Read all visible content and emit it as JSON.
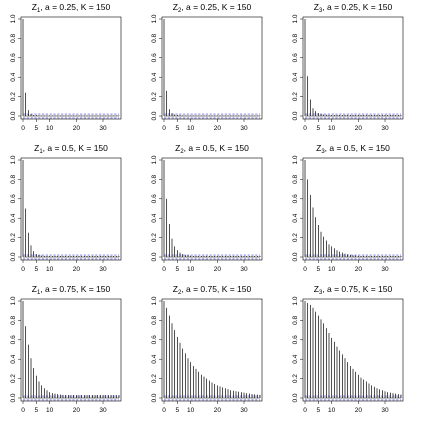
{
  "chart_data": [
    {
      "type": "bar",
      "title": "Z1, a = 0.25, K = 150",
      "title_main": "Z",
      "title_sub": "1",
      "title_rest": ", a = 0.25, K = 150",
      "ylim": [
        0,
        1
      ],
      "xlim": [
        0,
        36
      ],
      "yticks": [
        "0.0",
        "0.2",
        "0.4",
        "0.6",
        "0.8",
        "1.0"
      ],
      "xticks": [
        "0",
        "5",
        "10",
        "20",
        "30"
      ],
      "ci": 0.02,
      "lags": [
        0,
        1,
        2,
        3,
        4,
        5,
        6,
        7,
        8,
        9,
        10,
        11,
        12,
        13,
        14,
        15,
        16,
        17,
        18,
        19,
        20,
        21,
        22,
        23,
        24,
        25,
        26,
        27,
        28,
        29,
        30,
        31,
        32,
        33,
        34,
        35,
        36
      ],
      "values": [
        1.0,
        0.24,
        0.06,
        0.02,
        0.01,
        0.01,
        0.005,
        0.005,
        0.005,
        0.005,
        0.005,
        0.005,
        0.005,
        0.005,
        0.005,
        0.005,
        0.005,
        0.005,
        0.005,
        0.005,
        0.005,
        0.005,
        0.005,
        0.005,
        0.005,
        0.005,
        0.005,
        0.005,
        0.005,
        0.005,
        0.005,
        0.005,
        0.005,
        0.005,
        0.005,
        0.005,
        0.005
      ]
    },
    {
      "type": "bar",
      "title": "Z2, a = 0.25, K = 150",
      "title_main": "Z",
      "title_sub": "2",
      "title_rest": ", a = 0.25, K = 150",
      "ylim": [
        0,
        1
      ],
      "xlim": [
        0,
        36
      ],
      "yticks": [
        "0.0",
        "0.2",
        "0.4",
        "0.6",
        "0.8",
        "1.0"
      ],
      "xticks": [
        "0",
        "5",
        "10",
        "20",
        "30"
      ],
      "ci": 0.02,
      "lags": [
        0,
        1,
        2,
        3,
        4,
        5,
        6,
        7,
        8,
        9,
        10,
        11,
        12,
        13,
        14,
        15,
        16,
        17,
        18,
        19,
        20,
        21,
        22,
        23,
        24,
        25,
        26,
        27,
        28,
        29,
        30,
        31,
        32,
        33,
        34,
        35,
        36
      ],
      "values": [
        1.0,
        0.26,
        0.07,
        0.03,
        0.015,
        0.01,
        0.008,
        0.006,
        0.005,
        0.005,
        0.005,
        0.005,
        0.005,
        0.005,
        0.005,
        0.005,
        0.005,
        0.005,
        0.005,
        0.005,
        0.005,
        0.005,
        0.005,
        0.005,
        0.005,
        0.005,
        0.005,
        0.005,
        0.005,
        0.005,
        0.005,
        0.005,
        0.005,
        0.005,
        0.005,
        0.005,
        0.005
      ]
    },
    {
      "type": "bar",
      "title": "Z3, a = 0.25, K = 150",
      "title_main": "Z",
      "title_sub": "3",
      "title_rest": ", a = 0.25, K = 150",
      "ylim": [
        0,
        1
      ],
      "xlim": [
        0,
        36
      ],
      "yticks": [
        "0.0",
        "0.2",
        "0.4",
        "0.6",
        "0.8",
        "1.0"
      ],
      "xticks": [
        "0",
        "5",
        "10",
        "20",
        "30"
      ],
      "ci": 0.02,
      "lags": [
        0,
        1,
        2,
        3,
        4,
        5,
        6,
        7,
        8,
        9,
        10,
        11,
        12,
        13,
        14,
        15,
        16,
        17,
        18,
        19,
        20,
        21,
        22,
        23,
        24,
        25,
        26,
        27,
        28,
        29,
        30,
        31,
        32,
        33,
        34,
        35,
        36
      ],
      "values": [
        1.0,
        0.41,
        0.17,
        0.08,
        0.05,
        0.03,
        0.02,
        0.015,
        0.012,
        0.01,
        0.01,
        0.01,
        0.01,
        0.01,
        0.01,
        0.01,
        0.01,
        0.01,
        0.01,
        0.01,
        0.01,
        0.01,
        0.01,
        0.01,
        0.01,
        0.01,
        0.01,
        0.01,
        0.01,
        0.01,
        0.01,
        0.01,
        0.01,
        0.01,
        0.01,
        0.01,
        0.01
      ]
    },
    {
      "type": "bar",
      "title": "Z1, a = 0.5, K = 150",
      "title_main": "Z",
      "title_sub": "1",
      "title_rest": ", a = 0.5, K = 150",
      "ylim": [
        0,
        1
      ],
      "xlim": [
        0,
        36
      ],
      "yticks": [
        "0.0",
        "0.2",
        "0.4",
        "0.6",
        "0.8",
        "1.0"
      ],
      "xticks": [
        "0",
        "5",
        "10",
        "20",
        "30"
      ],
      "ci": 0.02,
      "lags": [
        0,
        1,
        2,
        3,
        4,
        5,
        6,
        7,
        8,
        9,
        10,
        11,
        12,
        13,
        14,
        15,
        16,
        17,
        18,
        19,
        20,
        21,
        22,
        23,
        24,
        25,
        26,
        27,
        28,
        29,
        30,
        31,
        32,
        33,
        34,
        35,
        36
      ],
      "values": [
        1.0,
        0.5,
        0.25,
        0.12,
        0.06,
        0.03,
        0.02,
        0.015,
        0.01,
        0.01,
        0.01,
        0.01,
        0.01,
        0.01,
        0.01,
        0.01,
        0.01,
        0.01,
        0.01,
        0.01,
        0.01,
        0.01,
        0.01,
        0.01,
        0.01,
        0.01,
        0.01,
        0.01,
        0.01,
        0.01,
        0.01,
        0.01,
        0.01,
        0.01,
        0.01,
        0.01,
        0.01
      ]
    },
    {
      "type": "bar",
      "title": "Z2, a = 0.5, K = 150",
      "title_main": "Z",
      "title_sub": "2",
      "title_rest": ", a = 0.5, K = 150",
      "ylim": [
        0,
        1
      ],
      "xlim": [
        0,
        36
      ],
      "yticks": [
        "0.0",
        "0.2",
        "0.4",
        "0.6",
        "0.8",
        "1.0"
      ],
      "xticks": [
        "0",
        "5",
        "10",
        "20",
        "30"
      ],
      "ci": 0.02,
      "lags": [
        0,
        1,
        2,
        3,
        4,
        5,
        6,
        7,
        8,
        9,
        10,
        11,
        12,
        13,
        14,
        15,
        16,
        17,
        18,
        19,
        20,
        21,
        22,
        23,
        24,
        25,
        26,
        27,
        28,
        29,
        30,
        31,
        32,
        33,
        34,
        35,
        36
      ],
      "values": [
        1.0,
        0.6,
        0.34,
        0.19,
        0.11,
        0.07,
        0.045,
        0.03,
        0.02,
        0.015,
        0.012,
        0.01,
        0.01,
        0.01,
        0.01,
        0.01,
        0.01,
        0.01,
        0.01,
        0.01,
        0.01,
        0.01,
        0.01,
        0.01,
        0.01,
        0.01,
        0.01,
        0.01,
        0.01,
        0.01,
        0.01,
        0.01,
        0.01,
        0.01,
        0.01,
        0.01,
        0.01
      ]
    },
    {
      "type": "bar",
      "title": "Z3, a = 0.5, K = 150",
      "title_main": "Z",
      "title_sub": "3",
      "title_rest": ", a = 0.5, K = 150",
      "ylim": [
        0,
        1
      ],
      "xlim": [
        0,
        36
      ],
      "yticks": [
        "0.0",
        "0.2",
        "0.4",
        "0.6",
        "0.8",
        "1.0"
      ],
      "xticks": [
        "0",
        "5",
        "10",
        "20",
        "30"
      ],
      "ci": 0.02,
      "lags": [
        0,
        1,
        2,
        3,
        4,
        5,
        6,
        7,
        8,
        9,
        10,
        11,
        12,
        13,
        14,
        15,
        16,
        17,
        18,
        19,
        20,
        21,
        22,
        23,
        24,
        25,
        26,
        27,
        28,
        29,
        30,
        31,
        32,
        33,
        34,
        35,
        36
      ],
      "values": [
        1.0,
        0.8,
        0.64,
        0.51,
        0.41,
        0.33,
        0.26,
        0.21,
        0.17,
        0.13,
        0.11,
        0.09,
        0.07,
        0.055,
        0.045,
        0.035,
        0.028,
        0.022,
        0.018,
        0.015,
        0.012,
        0.01,
        0.01,
        0.01,
        0.01,
        0.01,
        0.01,
        0.01,
        0.01,
        0.01,
        0.01,
        0.01,
        0.01,
        0.01,
        0.01,
        0.01,
        0.01
      ]
    },
    {
      "type": "bar",
      "title": "Z1, a = 0.75, K = 150",
      "title_main": "Z",
      "title_sub": "1",
      "title_rest": ", a = 0.75, K = 150",
      "ylim": [
        0,
        1
      ],
      "xlim": [
        0,
        36
      ],
      "yticks": [
        "0.0",
        "0.2",
        "0.4",
        "0.6",
        "0.8",
        "1.0"
      ],
      "xticks": [
        "0",
        "5",
        "10",
        "20",
        "30"
      ],
      "ci": 0.02,
      "lags": [
        0,
        1,
        2,
        3,
        4,
        5,
        6,
        7,
        8,
        9,
        10,
        11,
        12,
        13,
        14,
        15,
        16,
        17,
        18,
        19,
        20,
        21,
        22,
        23,
        24,
        25,
        26,
        27,
        28,
        29,
        30,
        31,
        32,
        33,
        34,
        35,
        36
      ],
      "values": [
        1.0,
        0.74,
        0.55,
        0.41,
        0.31,
        0.23,
        0.17,
        0.13,
        0.1,
        0.08,
        0.06,
        0.05,
        0.045,
        0.04,
        0.035,
        0.032,
        0.03,
        0.03,
        0.03,
        0.03,
        0.03,
        0.03,
        0.03,
        0.03,
        0.03,
        0.03,
        0.03,
        0.03,
        0.03,
        0.03,
        0.03,
        0.03,
        0.03,
        0.03,
        0.03,
        0.03,
        0.03
      ]
    },
    {
      "type": "bar",
      "title": "Z2, a = 0.75, K = 150",
      "title_main": "Z",
      "title_sub": "2",
      "title_rest": ", a = 0.75, K = 150",
      "ylim": [
        0,
        1
      ],
      "xlim": [
        0,
        36
      ],
      "yticks": [
        "0.0",
        "0.2",
        "0.4",
        "0.6",
        "0.8",
        "1.0"
      ],
      "xticks": [
        "0",
        "5",
        "10",
        "20",
        "30"
      ],
      "ci": 0.02,
      "lags": [
        0,
        1,
        2,
        3,
        4,
        5,
        6,
        7,
        8,
        9,
        10,
        11,
        12,
        13,
        14,
        15,
        16,
        17,
        18,
        19,
        20,
        21,
        22,
        23,
        24,
        25,
        26,
        27,
        28,
        29,
        30,
        31,
        32,
        33,
        34,
        35,
        36
      ],
      "values": [
        1.0,
        0.93,
        0.85,
        0.77,
        0.7,
        0.63,
        0.57,
        0.51,
        0.46,
        0.41,
        0.37,
        0.33,
        0.3,
        0.27,
        0.24,
        0.22,
        0.2,
        0.18,
        0.16,
        0.145,
        0.13,
        0.12,
        0.11,
        0.1,
        0.09,
        0.08,
        0.075,
        0.07,
        0.065,
        0.06,
        0.055,
        0.05,
        0.045,
        0.04,
        0.038,
        0.035,
        0.032
      ]
    },
    {
      "type": "bar",
      "title": "Z3, a = 0.75, K = 150",
      "title_main": "Z",
      "title_sub": "3",
      "title_rest": ", a = 0.75, K = 150",
      "ylim": [
        0,
        1
      ],
      "xlim": [
        0,
        36
      ],
      "yticks": [
        "0.0",
        "0.2",
        "0.4",
        "0.6",
        "0.8",
        "1.0"
      ],
      "xticks": [
        "0",
        "5",
        "10",
        "20",
        "30"
      ],
      "ci": 0.02,
      "lags": [
        0,
        1,
        2,
        3,
        4,
        5,
        6,
        7,
        8,
        9,
        10,
        11,
        12,
        13,
        14,
        15,
        16,
        17,
        18,
        19,
        20,
        21,
        22,
        23,
        24,
        25,
        26,
        27,
        28,
        29,
        30,
        31,
        32,
        33,
        34,
        35,
        36
      ],
      "values": [
        1.0,
        0.98,
        0.96,
        0.93,
        0.89,
        0.85,
        0.81,
        0.77,
        0.72,
        0.67,
        0.62,
        0.58,
        0.53,
        0.49,
        0.45,
        0.41,
        0.37,
        0.33,
        0.3,
        0.27,
        0.24,
        0.21,
        0.19,
        0.17,
        0.15,
        0.13,
        0.115,
        0.1,
        0.09,
        0.08,
        0.07,
        0.06,
        0.055,
        0.05,
        0.045,
        0.04,
        0.035
      ]
    }
  ]
}
